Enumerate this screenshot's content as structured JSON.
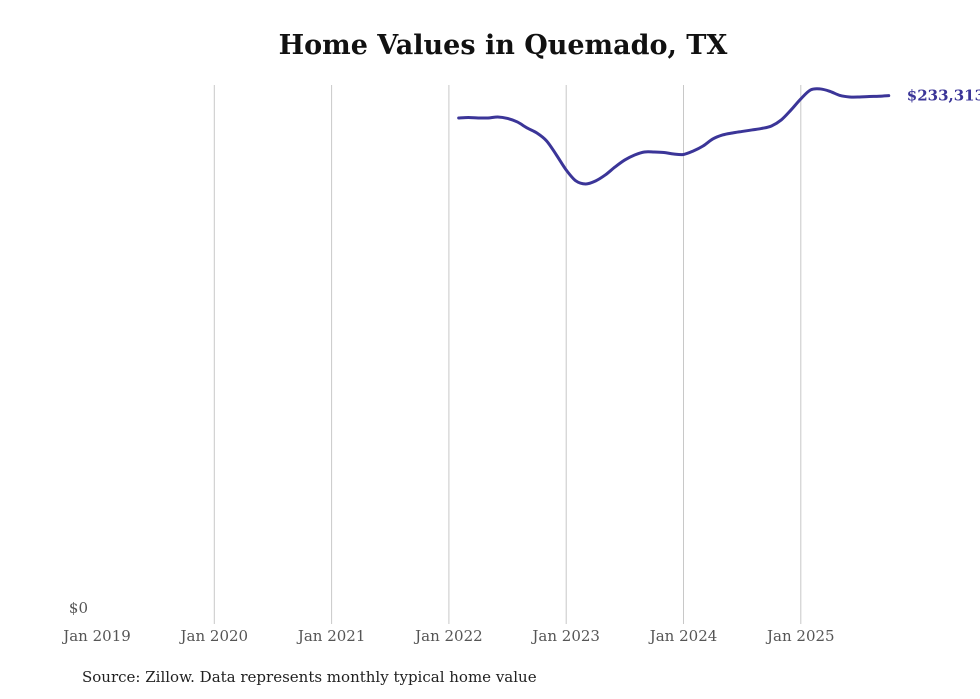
{
  "chart_data": {
    "type": "line",
    "title": "Home Values in Quemado, TX",
    "source": "Source: Zillow. Data represents monthly typical home value",
    "xlabel": "",
    "ylabel": "",
    "ylim": [
      0,
      238000
    ],
    "y_tick_labels": [
      "$0"
    ],
    "x_tick_labels": [
      "Jan 2019",
      "Jan 2020",
      "Jan 2021",
      "Jan 2022",
      "Jan 2023",
      "Jan 2024",
      "Jan 2025"
    ],
    "grid": "vertical",
    "color": "#3b3598",
    "end_label": "$233,313",
    "series": [
      {
        "name": "Typical home value",
        "start": "2022-02",
        "values": [
          223450,
          223670,
          223450,
          223450,
          223890,
          223230,
          221680,
          219030,
          216820,
          213290,
          207100,
          200480,
          195630,
          194300,
          195630,
          198280,
          201810,
          204900,
          207100,
          208430,
          208430,
          208210,
          207550,
          207330,
          208870,
          211080,
          214180,
          215940,
          216820,
          217490,
          218150,
          218810,
          219910,
          222570,
          226980,
          231840,
          235820,
          236260,
          235160,
          233390,
          232720,
          232720,
          232940,
          233030,
          233313
        ]
      }
    ]
  }
}
